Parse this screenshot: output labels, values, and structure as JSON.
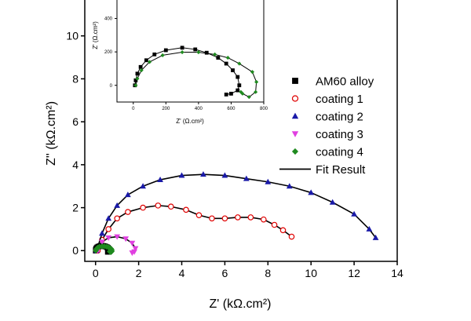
{
  "chart_data": [
    {
      "type": "scatter",
      "xlabel": "Z' (kΩ.cm²)",
      "ylabel": "Z'' (kΩ.cm²)",
      "xlim": [
        -0.5,
        14
      ],
      "ylim": [
        -0.5,
        12
      ],
      "xticks": [
        0,
        2,
        4,
        6,
        8,
        10,
        12,
        14
      ],
      "yticks": [
        0,
        2,
        4,
        6,
        8,
        10
      ],
      "grid": false,
      "legend": {
        "placement": "right-middle",
        "entries": [
          "AM60 alloy",
          "coating 1",
          "coating 2",
          "coating 3",
          "coating 4",
          "Fit Result"
        ]
      },
      "series": [
        {
          "name": "AM60 alloy",
          "color": "#000000",
          "marker": "square",
          "x": [
            0.01,
            0.015,
            0.025,
            0.045,
            0.08,
            0.13,
            0.2,
            0.3,
            0.38,
            0.45,
            0.52,
            0.57,
            0.61,
            0.64,
            0.65,
            0.64,
            0.6,
            0.57
          ],
          "y": [
            0,
            0.03,
            0.07,
            0.11,
            0.15,
            0.185,
            0.21,
            0.225,
            0.215,
            0.195,
            0.165,
            0.13,
            0.09,
            0.05,
            0,
            -0.03,
            -0.05,
            -0.055
          ]
        },
        {
          "name": "coating 1",
          "color": "#e00000",
          "marker": "circle",
          "x": [
            0.1,
            0.3,
            0.6,
            1.0,
            1.5,
            2.2,
            2.9,
            3.5,
            4.2,
            4.8,
            5.4,
            6.0,
            6.6,
            7.2,
            7.8,
            8.3,
            8.7,
            9.1
          ],
          "y": [
            0,
            0.5,
            1.0,
            1.5,
            1.8,
            2.0,
            2.1,
            2.05,
            1.9,
            1.65,
            1.5,
            1.5,
            1.55,
            1.55,
            1.45,
            1.2,
            0.95,
            0.65
          ]
        },
        {
          "name": "coating 2",
          "color": "#1a1aa8",
          "marker": "triangle",
          "x": [
            0.05,
            0.3,
            0.6,
            1.0,
            1.5,
            2.2,
            3.0,
            4.0,
            5.0,
            6.0,
            7.0,
            8.0,
            9.0,
            10.0,
            11.0,
            12.0,
            12.7,
            13.0
          ],
          "y": [
            0,
            0.8,
            1.5,
            2.1,
            2.6,
            3.0,
            3.3,
            3.5,
            3.55,
            3.5,
            3.35,
            3.2,
            3.0,
            2.7,
            2.25,
            1.7,
            1.0,
            0.6
          ]
        },
        {
          "name": "coating 3",
          "color": "#e040e0",
          "marker": "triangle-down",
          "x": [
            0.1,
            0.3,
            0.6,
            1.0,
            1.4,
            1.7,
            1.85,
            1.8,
            1.7
          ],
          "y": [
            0,
            0.4,
            0.6,
            0.65,
            0.55,
            0.35,
            0.1,
            -0.05,
            -0.1
          ]
        },
        {
          "name": "coating 4",
          "color": "#1f8a1f",
          "marker": "diamond",
          "x": [
            0.015,
            0.025,
            0.05,
            0.1,
            0.18,
            0.3,
            0.4,
            0.5,
            0.58,
            0.65,
            0.73,
            0.755,
            0.75,
            0.71,
            0.67,
            0.66
          ],
          "y": [
            0,
            0.04,
            0.09,
            0.14,
            0.18,
            0.198,
            0.198,
            0.185,
            0.165,
            0.13,
            0.08,
            0.02,
            -0.04,
            -0.07,
            -0.05,
            -0.04
          ]
        }
      ]
    },
    {
      "type": "scatter",
      "xlabel": "Z' (Ω.cm²)",
      "ylabel": "Z' (Ω.cm²)",
      "xlim": [
        -100,
        800
      ],
      "ylim": [
        -100,
        520
      ],
      "xticks": [
        0,
        200,
        400,
        600,
        800
      ],
      "yticks": [
        0,
        200,
        400
      ],
      "grid": false,
      "series": [
        {
          "name": "AM60 alloy",
          "color": "#000000",
          "marker": "square",
          "x": [
            10,
            15,
            25,
            45,
            80,
            130,
            200,
            300,
            380,
            450,
            520,
            570,
            610,
            640,
            650,
            640,
            600,
            570
          ],
          "y": [
            0,
            30,
            70,
            110,
            150,
            185,
            210,
            225,
            215,
            195,
            165,
            130,
            90,
            50,
            0,
            -30,
            -50,
            -55
          ]
        },
        {
          "name": "coating 4",
          "color": "#1f8a1f",
          "marker": "diamond",
          "x": [
            15,
            25,
            50,
            100,
            180,
            300,
            400,
            500,
            580,
            650,
            730,
            755,
            750,
            710,
            670,
            660
          ],
          "y": [
            0,
            40,
            90,
            140,
            180,
            198,
            198,
            185,
            165,
            130,
            80,
            20,
            -40,
            -70,
            -50,
            -40
          ]
        }
      ]
    }
  ]
}
